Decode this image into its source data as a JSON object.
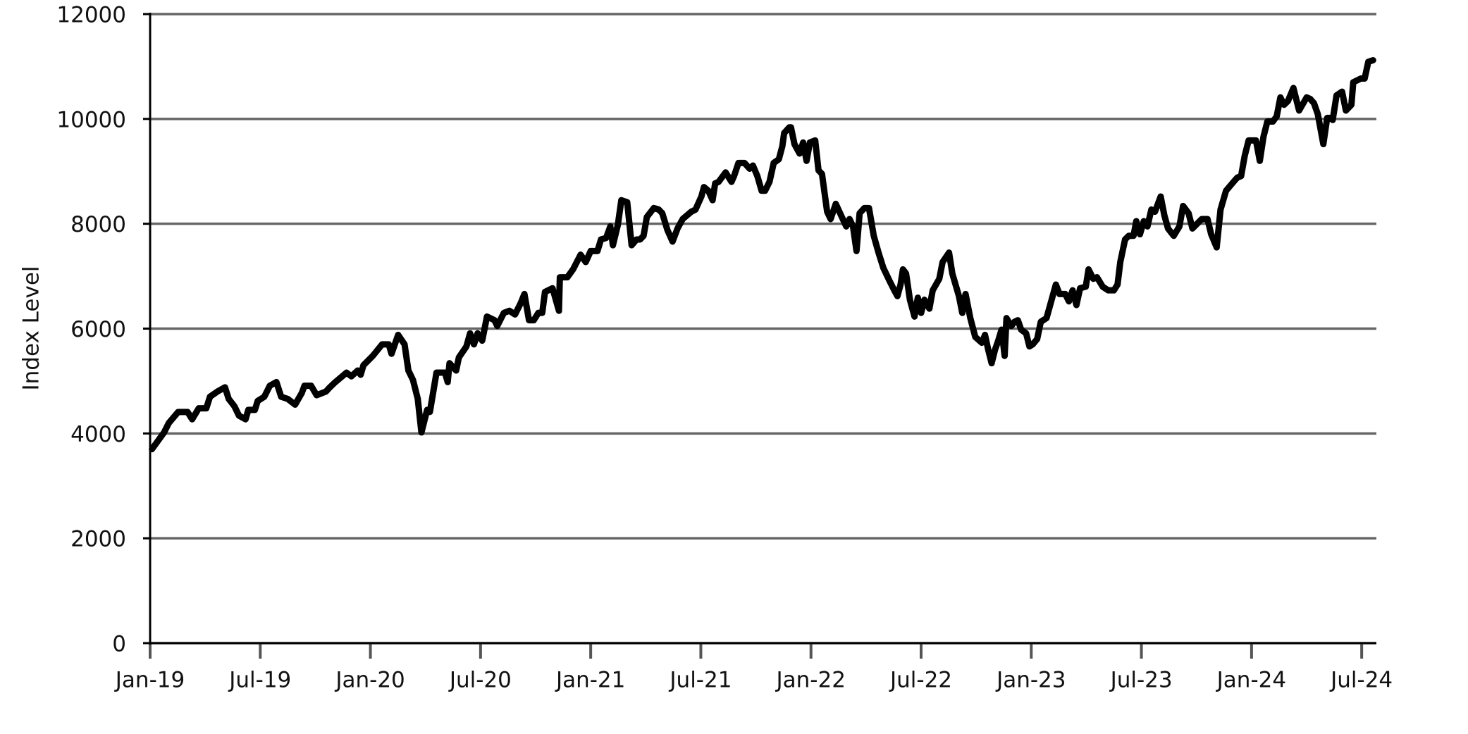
{
  "chart_data": {
    "type": "line",
    "y_label": "Index Level",
    "x": [
      0.1,
      0.76,
      1.02,
      1.53,
      2.04,
      2.29,
      2.65,
      3.06,
      3.26,
      3.67,
      4.08,
      4.28,
      4.59,
      4.84,
      5.2,
      5.35,
      5.71,
      5.86,
      6.22,
      6.52,
      6.88,
      7.14,
      7.49,
      7.9,
      8.26,
      8.41,
      8.77,
      9.07,
      9.58,
      9.79,
      10.09,
      10.7,
      10.96,
      11.31,
      11.47,
      11.62,
      12.13,
      12.64,
      13.0,
      13.15,
      13.51,
      13.86,
      14.07,
      14.32,
      14.58,
      14.78,
      15.09,
      15.24,
      15.6,
      16.06,
      16.21,
      16.31,
      16.67,
      16.82,
      17.23,
      17.43,
      17.64,
      17.84,
      18.09,
      18.35,
      18.76,
      18.91,
      19.27,
      19.57,
      19.88,
      20.18,
      20.39,
      20.64,
      20.9,
      21.15,
      21.36,
      21.51,
      21.92,
      22.27,
      22.32,
      22.73,
      23.04,
      23.45,
      23.73,
      24.0,
      24.37,
      24.56,
      24.84,
      25.07,
      25.21,
      25.48,
      25.67,
      25.99,
      26.23,
      26.5,
      26.69,
      26.88,
      27.06,
      27.44,
      27.71,
      27.9,
      28.18,
      28.46,
      28.73,
      29.01,
      29.48,
      29.71,
      30.03,
      30.17,
      30.41,
      30.64,
      30.78,
      30.97,
      31.35,
      31.67,
      31.81,
      32.05,
      32.38,
      32.66,
      32.84,
      33.08,
      33.31,
      33.5,
      33.74,
      33.97,
      34.25,
      34.44,
      34.54,
      34.82,
      34.91,
      35.1,
      35.38,
      35.57,
      35.76,
      35.94,
      36.23,
      36.41,
      36.6,
      36.88,
      37.07,
      37.35,
      37.68,
      37.92,
      38.1,
      38.29,
      38.48,
      38.65,
      38.91,
      39.16,
      39.42,
      39.68,
      39.94,
      40.28,
      40.54,
      40.71,
      40.88,
      41.01,
      41.18,
      41.39,
      41.64,
      41.82,
      42.0,
      42.18,
      42.45,
      42.63,
      42.99,
      43.17,
      43.52,
      43.7,
      44.06,
      44.24,
      44.42,
      44.68,
      44.95,
      45.31,
      45.48,
      45.66,
      45.84,
      46.02,
      46.2,
      46.38,
      46.55,
      46.65,
      46.91,
      47.09,
      47.27,
      47.45,
      47.72,
      47.9,
      48.08,
      48.32,
      48.52,
      48.83,
      49.03,
      49.34,
      49.54,
      49.85,
      50.05,
      50.25,
      50.46,
      50.66,
      50.97,
      51.12,
      51.38,
      51.58,
      51.89,
      52.19,
      52.5,
      52.7,
      52.85,
      53.11,
      53.31,
      53.57,
      53.72,
      53.92,
      54.13,
      54.33,
      54.54,
      54.74,
      55.05,
      55.25,
      55.45,
      55.76,
      56.07,
      56.27,
      56.57,
      56.78,
      57.09,
      57.29,
      57.6,
      57.8,
      58.1,
      58.31,
      58.61,
      59.02,
      59.22,
      59.43,
      59.63,
      59.84,
      60.24,
      60.45,
      60.65,
      60.86,
      61.16,
      61.37,
      61.57,
      61.77,
      61.98,
      62.28,
      62.59,
      63.0,
      63.2,
      63.4,
      63.61,
      63.91,
      64.12,
      64.32,
      64.42,
      64.63,
      64.93,
      65.14,
      65.44,
      65.54,
      65.95,
      66.16,
      66.36,
      66.62
    ],
    "values": [
      3700,
      4020,
      4200,
      4410,
      4410,
      4270,
      4480,
      4480,
      4700,
      4800,
      4880,
      4660,
      4520,
      4340,
      4270,
      4450,
      4450,
      4620,
      4700,
      4910,
      4980,
      4700,
      4660,
      4550,
      4770,
      4910,
      4910,
      4730,
      4800,
      4880,
      4980,
      5160,
      5090,
      5200,
      5120,
      5300,
      5480,
      5700,
      5700,
      5520,
      5880,
      5700,
      5200,
      5020,
      4660,
      4020,
      4450,
      4410,
      5160,
      5160,
      4980,
      5340,
      5200,
      5450,
      5660,
      5910,
      5700,
      5910,
      5770,
      6230,
      6160,
      6050,
      6300,
      6340,
      6270,
      6480,
      6660,
      6160,
      6160,
      6300,
      6300,
      6700,
      6770,
      6340,
      6980,
      6980,
      7130,
      7410,
      7270,
      7480,
      7480,
      7700,
      7730,
      7950,
      7590,
      7980,
      8450,
      8410,
      7590,
      7700,
      7700,
      7770,
      8130,
      8300,
      8270,
      8200,
      7880,
      7660,
      7910,
      8090,
      8230,
      8270,
      8520,
      8700,
      8630,
      8450,
      8770,
      8800,
      8980,
      8800,
      8910,
      9160,
      9160,
      9050,
      9110,
      8910,
      8630,
      8630,
      8800,
      9160,
      9230,
      9480,
      9730,
      9840,
      9840,
      9520,
      9340,
      9550,
      9200,
      9550,
      9590,
      9020,
      8950,
      8230,
      8090,
      8380,
      8130,
      7950,
      8090,
      7950,
      7480,
      8200,
      8300,
      8300,
      7770,
      7450,
      7160,
      6910,
      6730,
      6620,
      6840,
      7130,
      7050,
      6550,
      6230,
      6590,
      6300,
      6550,
      6380,
      6730,
      6950,
      7270,
      7450,
      7050,
      6620,
      6300,
      6660,
      6200,
      5840,
      5730,
      5880,
      5590,
      5340,
      5590,
      5770,
      5980,
      5480,
      6200,
      6050,
      6130,
      6160,
      5980,
      5910,
      5660,
      5700,
      5800,
      6130,
      6200,
      6450,
      6840,
      6660,
      6660,
      6520,
      6730,
      6450,
      6770,
      6800,
      7130,
      6950,
      6980,
      6800,
      6730,
      6730,
      6840,
      7270,
      7700,
      7770,
      7770,
      8050,
      7800,
      8050,
      7950,
      8270,
      8230,
      8520,
      8160,
      7910,
      7770,
      7950,
      8340,
      8200,
      7910,
      8020,
      8090,
      8090,
      7800,
      7550,
      8270,
      8630,
      8800,
      8880,
      8910,
      9300,
      9590,
      9590,
      9200,
      9660,
      9950,
      9950,
      10050,
      10410,
      10270,
      10340,
      10590,
      10160,
      10410,
      10380,
      10300,
      10090,
      9520,
      10020,
      10020,
      9980,
      10450,
      10520,
      10160,
      10270,
      10700,
      10770,
      10770,
      11090,
      11120
    ],
    "color": "#000000",
    "xlim": [
      0,
      66.8
    ],
    "xticks": [
      {
        "value": 0,
        "label": "Jan-19"
      },
      {
        "value": 6,
        "label": "Jul-19"
      },
      {
        "value": 12,
        "label": "Jan-20"
      },
      {
        "value": 18,
        "label": "Jul-20"
      },
      {
        "value": 24,
        "label": "Jan-21"
      },
      {
        "value": 30,
        "label": "Jul-21"
      },
      {
        "value": 36,
        "label": "Jan-22"
      },
      {
        "value": 42,
        "label": "Jul-22"
      },
      {
        "value": 48,
        "label": "Jan-23"
      },
      {
        "value": 54,
        "label": "Jul-23"
      },
      {
        "value": 60,
        "label": "Jan-24"
      },
      {
        "value": 66,
        "label": "Jul-24"
      }
    ],
    "ylim": [
      0,
      12000
    ],
    "yticks": [
      0,
      2000,
      4000,
      6000,
      8000,
      10000,
      12000
    ],
    "grid": true
  }
}
